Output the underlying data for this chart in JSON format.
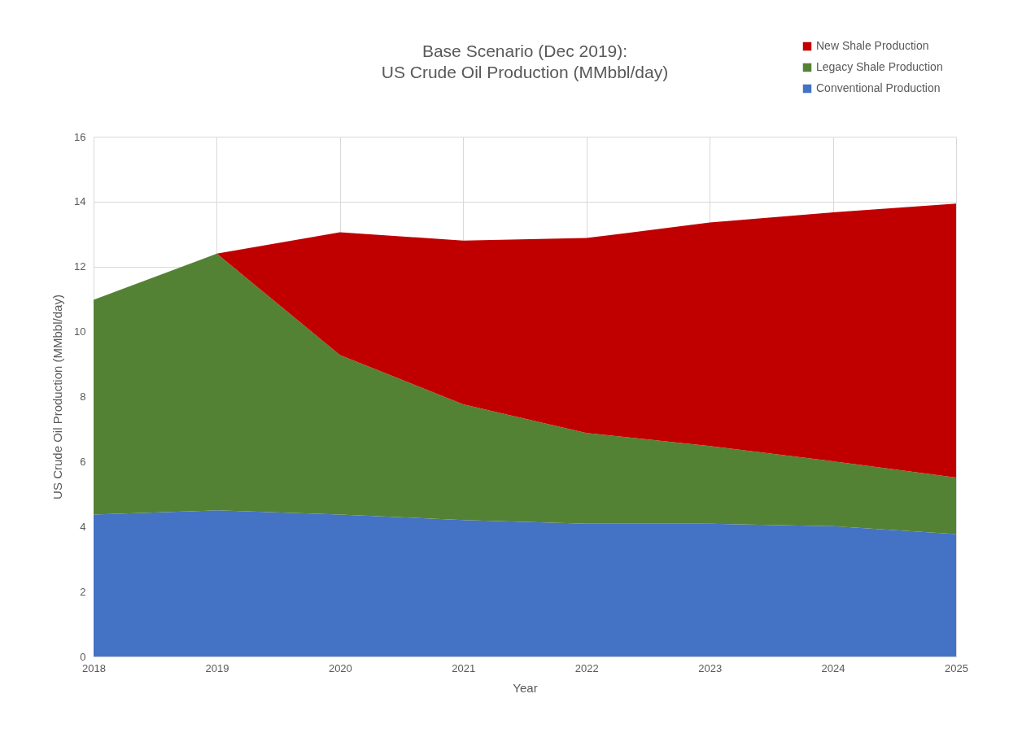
{
  "chart_data": {
    "type": "area",
    "title": "Base Scenario (Dec 2019):\nUS Crude Oil Production (MMbbl/day)",
    "xlabel": "Year",
    "ylabel": "US Crude Oil Production (MMbbl/day)",
    "x": [
      2018,
      2019,
      2020,
      2021,
      2022,
      2023,
      2024,
      2025
    ],
    "series": [
      {
        "name": "Conventional Production",
        "color": "#4472c4",
        "values": [
          4.37,
          4.5,
          4.37,
          4.2,
          4.09,
          4.09,
          4.01,
          3.77
        ]
      },
      {
        "name": "Legacy Shale Production",
        "color": "#548235",
        "values": [
          6.61,
          7.9,
          4.91,
          3.56,
          2.79,
          2.39,
          2.0,
          1.74
        ]
      },
      {
        "name": "New Shale Production",
        "color": "#c00000",
        "values": [
          0,
          0,
          3.78,
          5.04,
          6.0,
          6.88,
          7.66,
          8.43
        ]
      }
    ],
    "stacked": true,
    "xlim": [
      2018,
      2025
    ],
    "xticks": [
      2018,
      2019,
      2020,
      2021,
      2022,
      2023,
      2024,
      2025
    ],
    "ylim": [
      0,
      16
    ],
    "yticks": [
      0,
      2,
      4,
      6,
      8,
      10,
      12,
      14,
      16
    ],
    "grid": true,
    "legend": "top right"
  }
}
